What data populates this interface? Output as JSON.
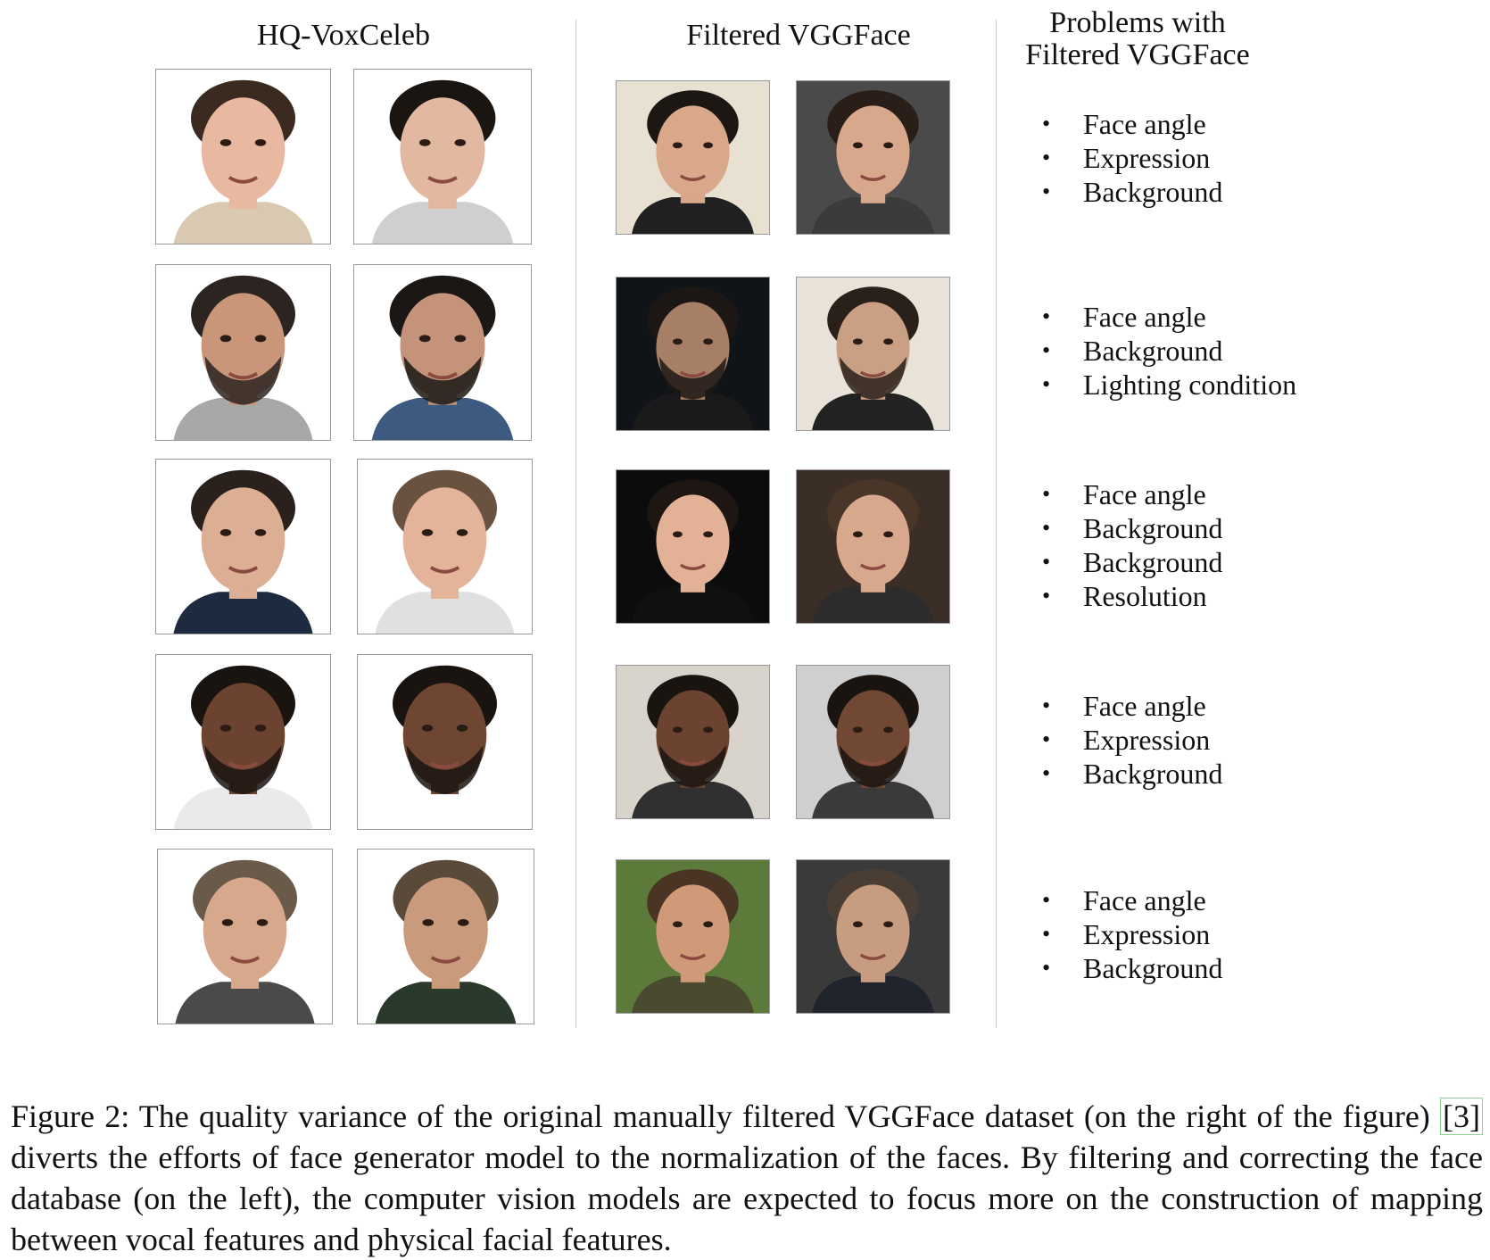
{
  "columns": {
    "hq_voxceleb": "HQ-VoxCeleb",
    "filtered_vggface": "Filtered VGGFace",
    "problems_line1": "Problems with",
    "problems_line2": "Filtered VGGFace"
  },
  "rows": [
    {
      "problems": [
        "Face angle",
        "Expression",
        "Background"
      ]
    },
    {
      "problems": [
        "Face angle",
        "Background",
        "Lighting condition"
      ]
    },
    {
      "problems": [
        "Face angle",
        "Background",
        "Background",
        "Resolution"
      ]
    },
    {
      "problems": [
        "Face angle",
        "Expression",
        "Background"
      ]
    },
    {
      "problems": [
        "Face angle",
        "Expression",
        "Background"
      ]
    }
  ],
  "caption": {
    "part1": "Figure 2: The quality variance of the original manually filtered VGGFace dataset (on the right of the figure) ",
    "ref": "[3]",
    "part2": " diverts the efforts of face generator model to the normalization of the faces. By filtering and correcting the face database (on the left), the computer vision models are expected to focus more on the construction of mapping between vocal features and physical facial features."
  }
}
